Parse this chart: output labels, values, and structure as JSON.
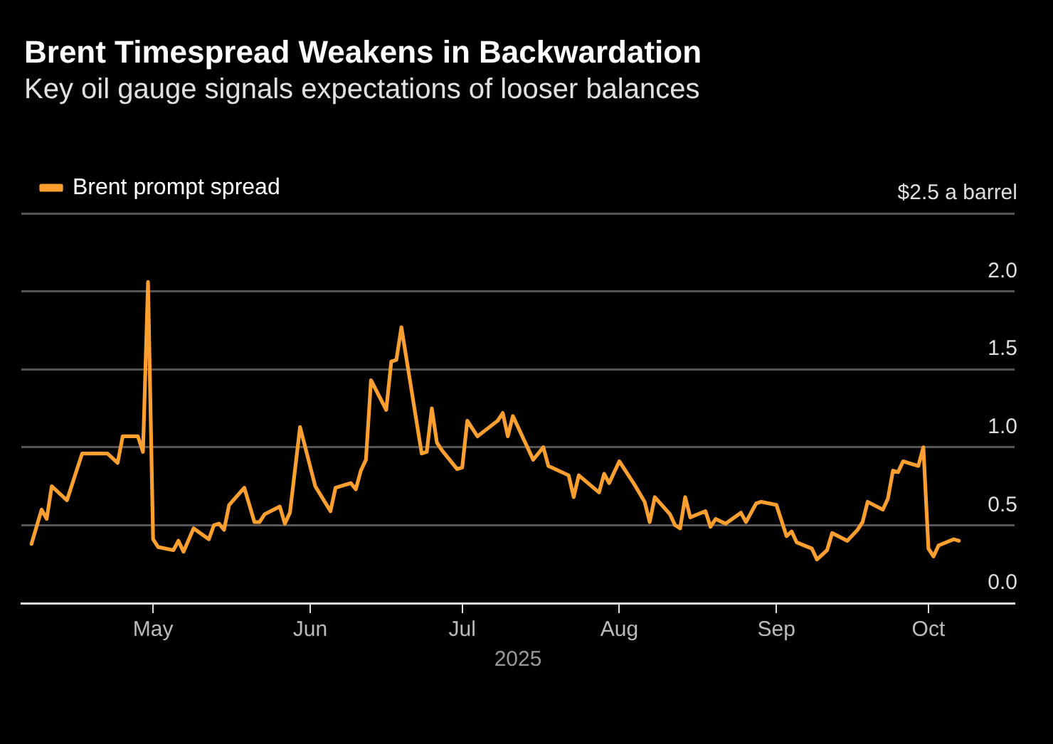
{
  "chart_data": {
    "type": "line",
    "title": "Brent Timespread Weakens in Backwardation",
    "subtitle": "Key oil gauge signals expectations of looser balances",
    "xlabel": "2025",
    "x": [
      "2025-04-07",
      "2025-04-08",
      "2025-04-09",
      "2025-04-10",
      "2025-04-11",
      "2025-04-14",
      "2025-04-16",
      "2025-04-17",
      "2025-04-22",
      "2025-04-24",
      "2025-04-25",
      "2025-04-28",
      "2025-04-29",
      "2025-04-30",
      "2025-05-01",
      "2025-05-02",
      "2025-05-05",
      "2025-05-06",
      "2025-05-07",
      "2025-05-09",
      "2025-05-12",
      "2025-05-13",
      "2025-05-14",
      "2025-05-15",
      "2025-05-16",
      "2025-05-19",
      "2025-05-21",
      "2025-05-22",
      "2025-05-23",
      "2025-05-26",
      "2025-05-27",
      "2025-05-28",
      "2025-05-30",
      "2025-06-02",
      "2025-06-05",
      "2025-06-06",
      "2025-06-09",
      "2025-06-10",
      "2025-06-11",
      "2025-06-12",
      "2025-06-13",
      "2025-06-16",
      "2025-06-17",
      "2025-06-18",
      "2025-06-19",
      "2025-06-23",
      "2025-06-24",
      "2025-06-25",
      "2025-06-26",
      "2025-06-27",
      "2025-06-30",
      "2025-07-01",
      "2025-07-02",
      "2025-07-04",
      "2025-07-08",
      "2025-07-09",
      "2025-07-10",
      "2025-07-11",
      "2025-07-15",
      "2025-07-17",
      "2025-07-18",
      "2025-07-22",
      "2025-07-23",
      "2025-07-24",
      "2025-07-28",
      "2025-07-29",
      "2025-07-30",
      "2025-08-01",
      "2025-08-04",
      "2025-08-06",
      "2025-08-07",
      "2025-08-08",
      "2025-08-11",
      "2025-08-12",
      "2025-08-13",
      "2025-08-14",
      "2025-08-15",
      "2025-08-18",
      "2025-08-19",
      "2025-08-20",
      "2025-08-22",
      "2025-08-25",
      "2025-08-26",
      "2025-08-28",
      "2025-08-29",
      "2025-09-01",
      "2025-09-03",
      "2025-09-04",
      "2025-09-05",
      "2025-09-08",
      "2025-09-09",
      "2025-09-11",
      "2025-09-12",
      "2025-09-15",
      "2025-09-17",
      "2025-09-18",
      "2025-09-19",
      "2025-09-22",
      "2025-09-23",
      "2025-09-24",
      "2025-09-25",
      "2025-09-26",
      "2025-09-28",
      "2025-09-29",
      "2025-09-30",
      "2025-10-01",
      "2025-10-02",
      "2025-10-03",
      "2025-10-06",
      "2025-10-07"
    ],
    "series": [
      {
        "name": "Brent prompt spread",
        "color": "#fb9f30",
        "values": [
          0.38,
          0.49,
          0.6,
          0.54,
          0.75,
          0.66,
          0.86,
          0.96,
          0.96,
          0.9,
          1.07,
          1.07,
          0.97,
          2.06,
          0.41,
          0.36,
          0.34,
          0.4,
          0.33,
          0.48,
          0.41,
          0.5,
          0.51,
          0.47,
          0.63,
          0.74,
          0.52,
          0.52,
          0.57,
          0.62,
          0.51,
          0.58,
          1.13,
          0.75,
          0.59,
          0.74,
          0.77,
          0.73,
          0.85,
          0.92,
          1.43,
          1.24,
          1.55,
          1.56,
          1.77,
          0.96,
          0.97,
          1.25,
          1.03,
          0.98,
          0.86,
          0.87,
          1.17,
          1.07,
          1.17,
          1.22,
          1.07,
          1.2,
          0.92,
          1.0,
          0.88,
          0.82,
          0.68,
          0.82,
          0.71,
          0.83,
          0.77,
          0.91,
          0.76,
          0.65,
          0.52,
          0.68,
          0.57,
          0.5,
          0.48,
          0.68,
          0.55,
          0.59,
          0.49,
          0.54,
          0.51,
          0.58,
          0.52,
          0.64,
          0.65,
          0.63,
          0.43,
          0.46,
          0.39,
          0.35,
          0.28,
          0.34,
          0.45,
          0.4,
          0.47,
          0.52,
          0.65,
          0.6,
          0.67,
          0.85,
          0.84,
          0.91,
          0.89,
          0.88,
          1.0,
          0.35,
          0.3,
          0.37,
          0.41,
          0.4
        ]
      }
    ],
    "xlim": [
      "2025-04-05",
      "2025-10-18"
    ],
    "xticks": [
      {
        "value": "2025-05-01",
        "label": "May"
      },
      {
        "value": "2025-06-01",
        "label": "Jun"
      },
      {
        "value": "2025-07-01",
        "label": "Jul"
      },
      {
        "value": "2025-08-01",
        "label": "Aug"
      },
      {
        "value": "2025-09-01",
        "label": "Sep"
      },
      {
        "value": "2025-10-01",
        "label": "Oct"
      }
    ],
    "ylim": [
      0,
      2.5
    ],
    "yticks": [
      {
        "value": 0,
        "label": "0.0"
      },
      {
        "value": 0.5,
        "label": "0.5"
      },
      {
        "value": 1,
        "label": "1.0"
      },
      {
        "value": 1.5,
        "label": "1.5"
      },
      {
        "value": 2,
        "label": "2.0"
      },
      {
        "value": 2.5,
        "label": "$2.5 a barrel"
      }
    ],
    "grid": "y",
    "legend": "top left",
    "marker": "none",
    "line_style": "solid"
  }
}
